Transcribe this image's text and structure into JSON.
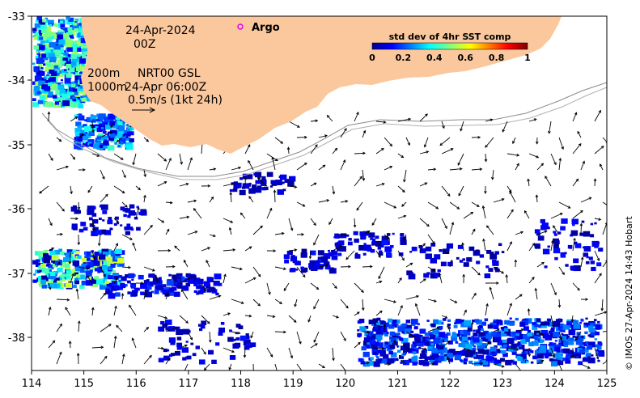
{
  "map": {
    "date": "24-Apr-2024",
    "time": "00Z",
    "contour_labels": [
      "200m",
      "1000m"
    ],
    "product": "NRT00 GSL",
    "product_time": "24-Apr 06:00Z",
    "scale_label": "0.5m/s (1kt 24h)",
    "argo_label": "Argo",
    "credit": "© IMOS 27-Apr-2024 14:43 Hobart",
    "colors": {
      "land": "#fbc89e",
      "argo_marker": "#e600e6"
    },
    "x_ticks": [
      "114",
      "115",
      "116",
      "117",
      "118",
      "119",
      "120",
      "121",
      "122",
      "123",
      "124",
      "125"
    ],
    "y_ticks": [
      "-33",
      "-34",
      "-35",
      "-36",
      "-37",
      "-38"
    ]
  },
  "colorbar": {
    "title": "std dev of 4hr SST comp",
    "ticks": [
      "0",
      "0.2",
      "0.4",
      "0.6",
      "0.8",
      "1"
    ],
    "range": [
      0,
      1
    ],
    "colormap": "jet"
  }
}
